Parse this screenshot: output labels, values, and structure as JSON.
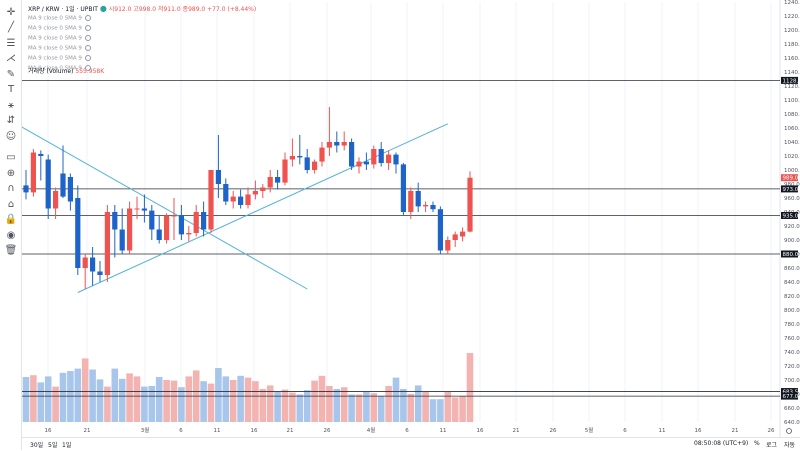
{
  "legend": {
    "symbol": "XRP / KRW",
    "interval": "1일",
    "exchange": "UPBIT",
    "ohlc": "시912.0  고998.0  저911.0  종989.0  +77.0 (+8.44%)"
  },
  "indicators": [
    "MA 9 close 0 SMA 9",
    "MA 9 close 0 SMA 9",
    "MA 9 close 0 SMA 9",
    "MA 9 close 0 SMA 9",
    "MA 9 close 0 SMA 9",
    "MA 9 close 0 SMA 9"
  ],
  "volume_legend": {
    "label": "거래량 (Volume)",
    "value": "555.958K"
  },
  "toolbar_icons": [
    "crosshair-icon",
    "trend-line-icon",
    "horizontal-lines-icon",
    "pitchfork-icon",
    "brush-icon",
    "text-icon",
    "pattern-icon",
    "forecast-icon",
    "emoji-icon",
    "ruler-icon",
    "zoom-in-icon",
    "magnet-icon",
    "lock-drawing-icon",
    "lock-icon",
    "eye-icon",
    "trash-icon"
  ],
  "price_axis_labels": [
    "1240.0",
    "1220.0",
    "1200.0",
    "1180.0",
    "1160.0",
    "1140.0",
    "1120.0",
    "1100.0",
    "1080.0",
    "1060.0",
    "1040.0",
    "1020.0",
    "1000.0",
    "980.0",
    "960.0",
    "940.0",
    "920.0",
    "900.0",
    "880.0",
    "860.0",
    "840.0",
    "820.0",
    "800.0",
    "780.0",
    "760.0",
    "740.0",
    "720.0",
    "700.0",
    "680.0",
    "660.0",
    "640.0"
  ],
  "price_badges": [
    "1128.0",
    "989.0",
    "973.0",
    "935.0",
    "880.0",
    "683.5",
    "677.0"
  ],
  "time_axis_labels": [
    "16",
    "21",
    "3월",
    "6",
    "11",
    "16",
    "21",
    "26",
    "4월",
    "6",
    "11",
    "16",
    "21",
    "26",
    "5월",
    "6",
    "11",
    "16",
    "21",
    "26"
  ],
  "bottom_bar": {
    "ranges": [
      "30일",
      "5일",
      "1일"
    ],
    "clock": "08:50:08 (UTC+9)",
    "percent": "%",
    "log": "로그",
    "auto": "자동"
  },
  "colors": {
    "up": "#ef5350",
    "down": "#1e64c8",
    "vol_up": "#f3b4b1",
    "vol_down": "#a8c6eb",
    "trend": "#4fb3d9"
  },
  "chart_data": {
    "type": "candlestick",
    "ylim": [
      640,
      1240
    ],
    "candles": [
      {
        "o": 978,
        "h": 1000,
        "l": 958,
        "c": 968
      },
      {
        "o": 968,
        "h": 1030,
        "l": 962,
        "c": 1025
      },
      {
        "o": 1023,
        "h": 1028,
        "l": 985,
        "c": 1020
      },
      {
        "o": 1015,
        "h": 1022,
        "l": 930,
        "c": 945
      },
      {
        "o": 945,
        "h": 975,
        "l": 930,
        "c": 970
      },
      {
        "o": 995,
        "h": 1035,
        "l": 960,
        "c": 962
      },
      {
        "o": 990,
        "h": 995,
        "l": 942,
        "c": 955
      },
      {
        "o": 960,
        "h": 978,
        "l": 850,
        "c": 860
      },
      {
        "o": 860,
        "h": 880,
        "l": 830,
        "c": 875
      },
      {
        "o": 875,
        "h": 890,
        "l": 835,
        "c": 855
      },
      {
        "o": 855,
        "h": 870,
        "l": 840,
        "c": 850
      },
      {
        "o": 850,
        "h": 950,
        "l": 840,
        "c": 940
      },
      {
        "o": 940,
        "h": 950,
        "l": 875,
        "c": 915
      },
      {
        "o": 915,
        "h": 945,
        "l": 880,
        "c": 885
      },
      {
        "o": 885,
        "h": 955,
        "l": 880,
        "c": 945
      },
      {
        "o": 945,
        "h": 962,
        "l": 930,
        "c": 945
      },
      {
        "o": 945,
        "h": 965,
        "l": 925,
        "c": 942
      },
      {
        "o": 942,
        "h": 950,
        "l": 900,
        "c": 915
      },
      {
        "o": 915,
        "h": 935,
        "l": 895,
        "c": 900
      },
      {
        "o": 900,
        "h": 938,
        "l": 895,
        "c": 935
      },
      {
        "o": 935,
        "h": 960,
        "l": 900,
        "c": 935
      },
      {
        "o": 935,
        "h": 950,
        "l": 900,
        "c": 908
      },
      {
        "o": 908,
        "h": 920,
        "l": 898,
        "c": 910
      },
      {
        "o": 910,
        "h": 950,
        "l": 905,
        "c": 940
      },
      {
        "o": 940,
        "h": 955,
        "l": 905,
        "c": 915
      },
      {
        "o": 915,
        "h": 1000,
        "l": 910,
        "c": 1000
      },
      {
        "o": 1000,
        "h": 1050,
        "l": 960,
        "c": 980
      },
      {
        "o": 980,
        "h": 988,
        "l": 950,
        "c": 955
      },
      {
        "o": 955,
        "h": 970,
        "l": 945,
        "c": 962
      },
      {
        "o": 962,
        "h": 972,
        "l": 945,
        "c": 950
      },
      {
        "o": 950,
        "h": 975,
        "l": 945,
        "c": 965
      },
      {
        "o": 965,
        "h": 985,
        "l": 958,
        "c": 970
      },
      {
        "o": 970,
        "h": 980,
        "l": 960,
        "c": 975
      },
      {
        "o": 975,
        "h": 1000,
        "l": 968,
        "c": 990
      },
      {
        "o": 990,
        "h": 1000,
        "l": 972,
        "c": 982
      },
      {
        "o": 982,
        "h": 1025,
        "l": 978,
        "c": 1015
      },
      {
        "o": 1015,
        "h": 1045,
        "l": 1005,
        "c": 1020
      },
      {
        "o": 1020,
        "h": 1050,
        "l": 1008,
        "c": 1018
      },
      {
        "o": 1018,
        "h": 1030,
        "l": 995,
        "c": 1000
      },
      {
        "o": 1000,
        "h": 1015,
        "l": 995,
        "c": 1012
      },
      {
        "o": 1012,
        "h": 1040,
        "l": 1005,
        "c": 1032
      },
      {
        "o": 1032,
        "h": 1090,
        "l": 1020,
        "c": 1040
      },
      {
        "o": 1040,
        "h": 1055,
        "l": 1025,
        "c": 1035
      },
      {
        "o": 1035,
        "h": 1055,
        "l": 1028,
        "c": 1040
      },
      {
        "o": 1040,
        "h": 1045,
        "l": 1000,
        "c": 1005
      },
      {
        "o": 1005,
        "h": 1018,
        "l": 995,
        "c": 1012
      },
      {
        "o": 1012,
        "h": 1025,
        "l": 1000,
        "c": 1008
      },
      {
        "o": 1008,
        "h": 1035,
        "l": 1002,
        "c": 1030
      },
      {
        "o": 1030,
        "h": 1040,
        "l": 1005,
        "c": 1010
      },
      {
        "o": 1010,
        "h": 1028,
        "l": 1000,
        "c": 1022
      },
      {
        "o": 1022,
        "h": 1025,
        "l": 995,
        "c": 1008
      },
      {
        "o": 1008,
        "h": 1010,
        "l": 935,
        "c": 940
      },
      {
        "o": 940,
        "h": 975,
        "l": 930,
        "c": 970
      },
      {
        "o": 970,
        "h": 982,
        "l": 940,
        "c": 948
      },
      {
        "o": 948,
        "h": 955,
        "l": 940,
        "c": 950
      },
      {
        "o": 950,
        "h": 955,
        "l": 940,
        "c": 944
      },
      {
        "o": 944,
        "h": 948,
        "l": 880,
        "c": 885
      },
      {
        "o": 885,
        "h": 905,
        "l": 880,
        "c": 900
      },
      {
        "o": 900,
        "h": 912,
        "l": 890,
        "c": 908
      },
      {
        "o": 905,
        "h": 918,
        "l": 898,
        "c": 912
      },
      {
        "o": 912,
        "h": 998,
        "l": 911,
        "c": 989
      }
    ],
    "volumes": [
      150,
      156,
      132,
      152,
      118,
      164,
      170,
      178,
      212,
      175,
      142,
      118,
      178,
      144,
      162,
      152,
      118,
      120,
      150,
      140,
      138,
      116,
      152,
      172,
      136,
      128,
      180,
      152,
      140,
      154,
      148,
      136,
      110,
      122,
      100,
      108,
      98,
      92,
      106,
      138,
      154,
      120,
      110,
      116,
      92,
      92,
      100,
      96,
      86,
      120,
      148,
      110,
      94,
      122,
      100,
      76,
      76,
      100,
      82,
      86,
      230
    ],
    "trendlines": [
      {
        "from": [
          -2,
          1070
        ],
        "to": [
          38,
          830
        ]
      },
      {
        "from": [
          7,
          825
        ],
        "to": [
          57,
          1066
        ]
      }
    ],
    "horizontal_levels": [
      1128,
      973,
      935,
      880,
      683.5,
      677
    ]
  }
}
